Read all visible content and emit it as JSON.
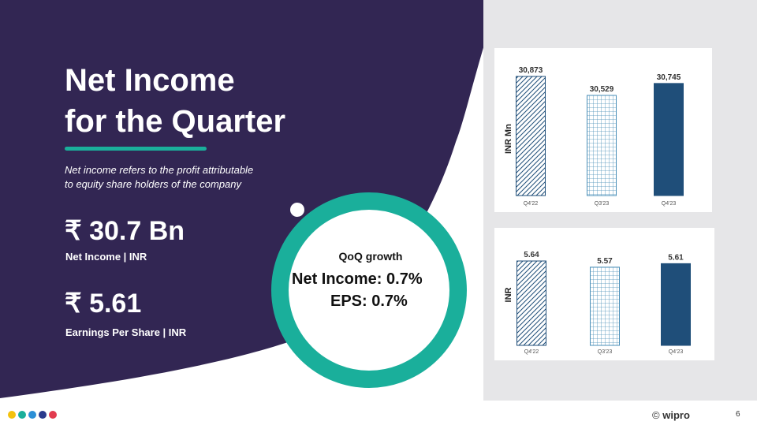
{
  "slide": {
    "title_lines": [
      "Net Income",
      "for the Quarter"
    ],
    "description_lines": [
      "Net income refers to the profit attributable",
      "to equity share holders of the company"
    ],
    "metrics": [
      {
        "value": "₹ 30.7 Bn",
        "label": "Net Income | INR"
      },
      {
        "value": "₹ 5.61",
        "label": "Earnings Per Share | INR"
      }
    ],
    "qoq": {
      "title": "QoQ growth",
      "net_income": "Net Income: 0.7%",
      "eps": "EPS: 0.7%"
    },
    "page_number": "6",
    "footer": {
      "copyright": "©",
      "brand": "wipro"
    }
  },
  "colors": {
    "purple": "#322653",
    "teal": "#1aaf9b",
    "bar_blue": "#1f4e79",
    "pattern_blue": "#4a8fb8",
    "panel_gray": "#e6e6e8",
    "brand_dots": [
      "#f4c20d",
      "#1aaf9b",
      "#2b8fd6",
      "#2a3a8c",
      "#e23c4f"
    ]
  },
  "chart_data": [
    {
      "type": "bar",
      "title": "",
      "ylabel": "INR Mn",
      "xlabel": "",
      "categories": [
        "Q4'22",
        "Q3'23",
        "Q4'23"
      ],
      "values": [
        30873,
        30529,
        30745
      ],
      "data_labels": [
        "30,873",
        "30,529",
        "30,745"
      ],
      "fill_styles": [
        "diagonal-hatch",
        "grid",
        "solid"
      ]
    },
    {
      "type": "bar",
      "title": "",
      "ylabel": "INR",
      "xlabel": "",
      "categories": [
        "Q4'22",
        "Q3'23",
        "Q4'23"
      ],
      "values": [
        5.64,
        5.57,
        5.61
      ],
      "data_labels": [
        "5.64",
        "5.57",
        "5.61"
      ],
      "fill_styles": [
        "diagonal-hatch",
        "grid",
        "solid"
      ]
    }
  ]
}
